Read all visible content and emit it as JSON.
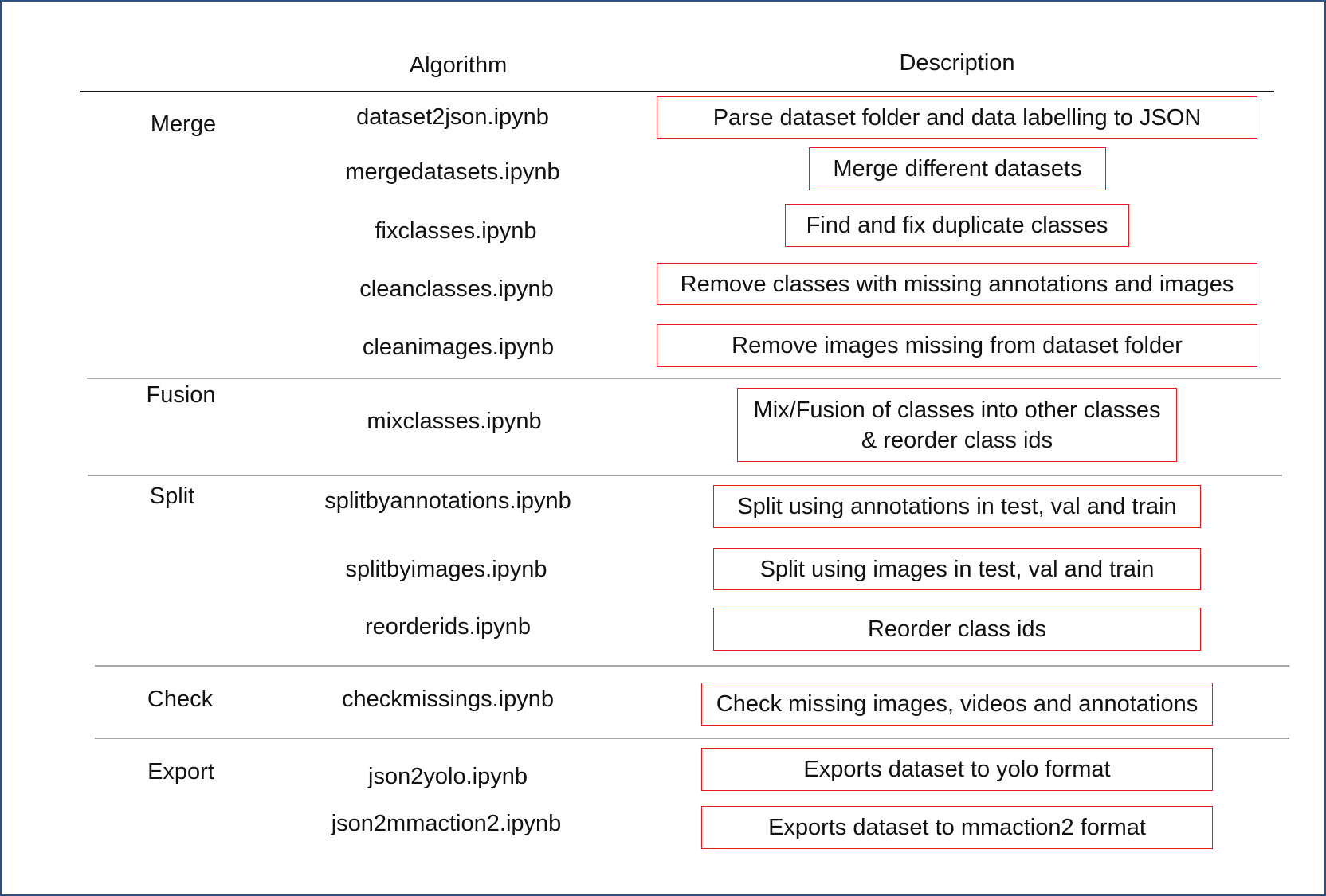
{
  "header": {
    "algorithm": "Algorithm",
    "description": "Description"
  },
  "rows": [
    {
      "category": "Merge",
      "algorithm": "dataset2json.ipynb",
      "description": "Parse dataset folder and data labelling to JSON"
    },
    {
      "category": "",
      "algorithm": "mergedatasets.ipynb",
      "description": "Merge different datasets"
    },
    {
      "category": "",
      "algorithm": "fixclasses.ipynb",
      "description": "Find and fix duplicate classes"
    },
    {
      "category": "",
      "algorithm": "cleanclasses.ipynb",
      "description": "Remove classes with missing annotations and images"
    },
    {
      "category": "",
      "algorithm": "cleanimages.ipynb",
      "description": "Remove images missing from dataset folder"
    },
    {
      "category": "Fusion",
      "algorithm": "mixclasses.ipynb",
      "description": "Mix/Fusion of classes into other classes\n& reorder class ids"
    },
    {
      "category": "Split",
      "algorithm": "splitbyannotations.ipynb",
      "description": "Split using annotations in test, val and train"
    },
    {
      "category": "",
      "algorithm": "splitbyimages.ipynb",
      "description": "Split using images in test, val and train"
    },
    {
      "category": "",
      "algorithm": "reorderids.ipynb",
      "description": "Reorder class ids"
    },
    {
      "category": "Check",
      "algorithm": "checkmissings.ipynb",
      "description": "Check missing images, videos and annotations"
    },
    {
      "category": "Export",
      "algorithm": "json2yolo.ipynb",
      "description": "Exports dataset to yolo format"
    },
    {
      "category": "",
      "algorithm": "json2mmaction2.ipynb",
      "description": "Exports dataset to mmaction2 format"
    }
  ],
  "colors": {
    "box_border": "#e31b1b",
    "separator": "#a6a6a6",
    "frame_border": "#2f4f7f",
    "rule": "#111111"
  }
}
